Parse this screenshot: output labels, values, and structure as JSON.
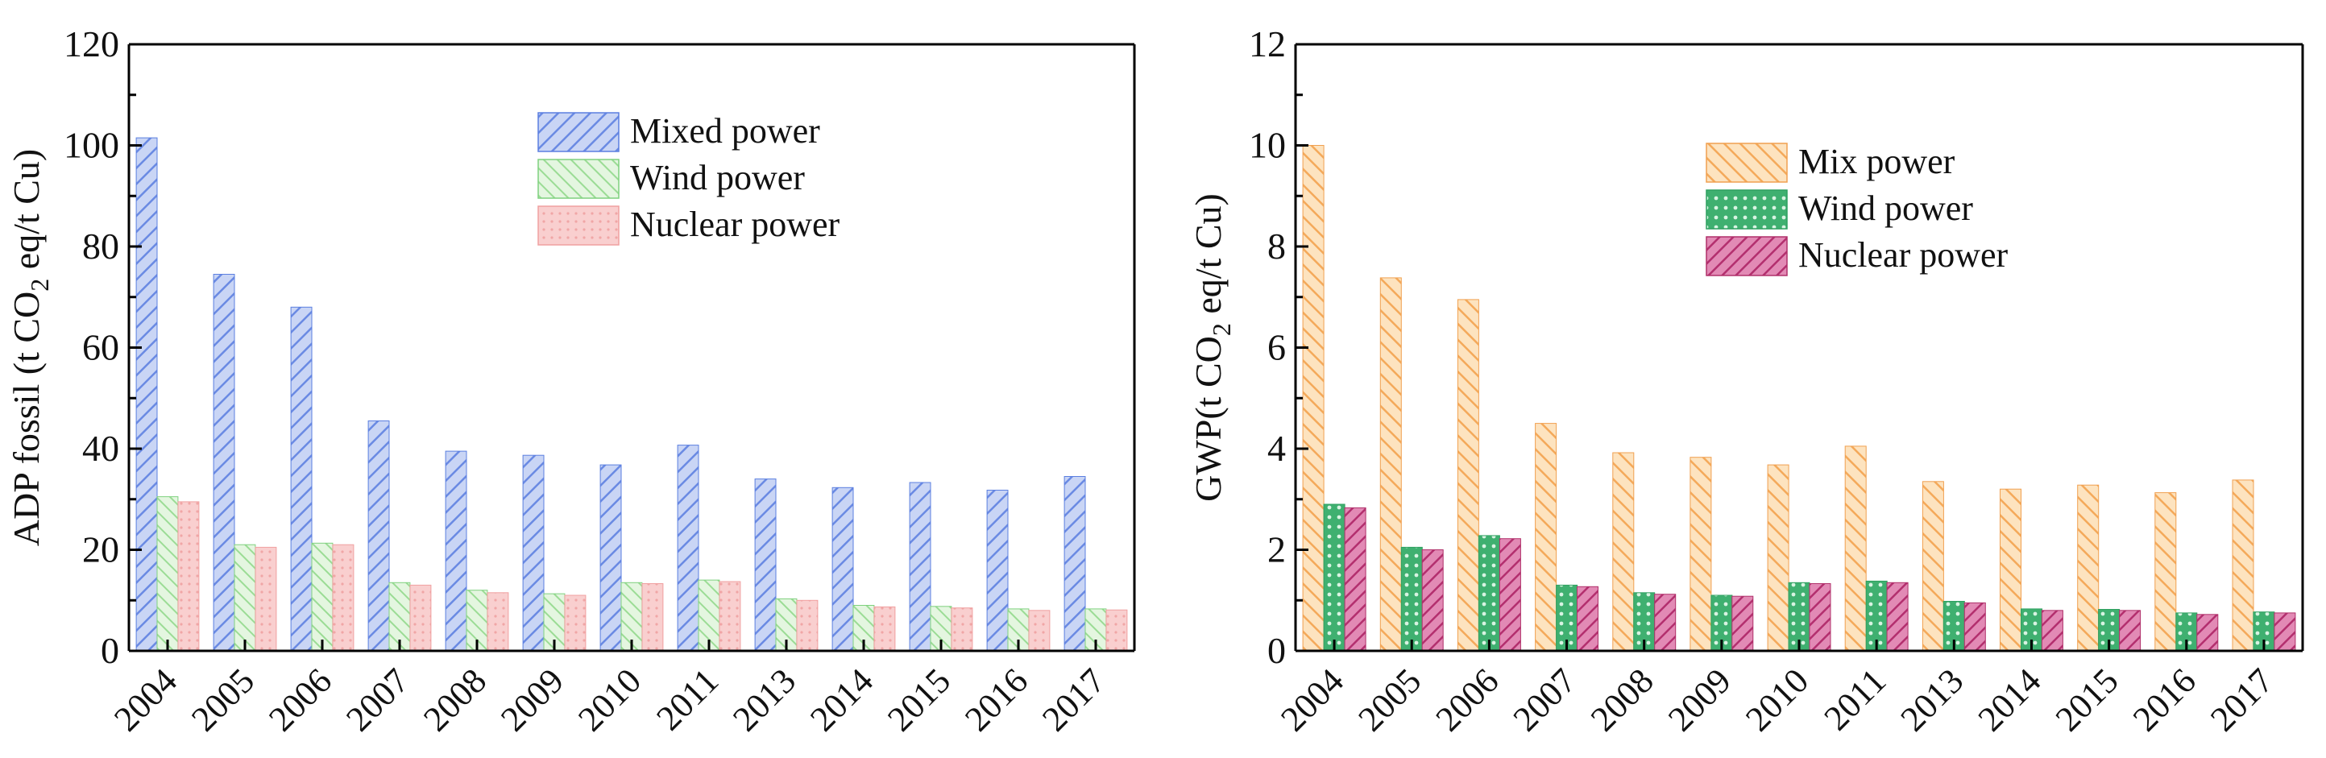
{
  "chart_data": [
    {
      "type": "bar",
      "ylabel": "ADP fossil (t CO2 eq/t Cu)",
      "ylabel_parts": [
        "ADP fossil (t CO",
        "2",
        " eq/t Cu)"
      ],
      "xlabel": "",
      "ylim": [
        0,
        120
      ],
      "yticks": [
        "0",
        "20",
        "40",
        "60",
        "80",
        "100",
        "120"
      ],
      "categories": [
        "2004",
        "2005",
        "2006",
        "2007",
        "2008",
        "2009",
        "2010",
        "2011",
        "2013",
        "2014",
        "2015",
        "2016",
        "2017"
      ],
      "legend_position": "top-right",
      "series": [
        {
          "name": "Mixed power",
          "color": "#5b7fe0",
          "fill": "#b9c8f2",
          "values": [
            101.5,
            74.5,
            68,
            45.5,
            39.5,
            38.7,
            36.8,
            40.7,
            34,
            32.3,
            33.3,
            31.8,
            34.5
          ]
        },
        {
          "name": "Wind power",
          "color": "#7fd17f",
          "fill": "#dcf3d8",
          "values": [
            30.5,
            21,
            21.3,
            13.5,
            12,
            11.3,
            13.5,
            14,
            10.3,
            9,
            8.8,
            8.3,
            8.3
          ]
        },
        {
          "name": "Nuclear power",
          "color": "#f0a0a0",
          "fill": "#f8cccc",
          "values": [
            29.5,
            20.5,
            21,
            13,
            11.5,
            11,
            13.3,
            13.7,
            10,
            8.7,
            8.5,
            8,
            8.1
          ]
        }
      ]
    },
    {
      "type": "bar",
      "ylabel": "GWP(t CO2 eq/t Cu)",
      "ylabel_parts": [
        "GWP(t CO",
        "2",
        " eq/t Cu)"
      ],
      "xlabel": "",
      "ylim": [
        0,
        12
      ],
      "yticks": [
        "0",
        "2",
        "4",
        "6",
        "8",
        "10",
        "12"
      ],
      "categories": [
        "2004",
        "2005",
        "2006",
        "2007",
        "2008",
        "2009",
        "2010",
        "2011",
        "2013",
        "2014",
        "2015",
        "2016",
        "2017"
      ],
      "legend_position": "top-right",
      "series": [
        {
          "name": "Mix power",
          "color": "#f0a050",
          "fill": "#fcd9a8",
          "values": [
            10,
            7.38,
            6.95,
            4.5,
            3.92,
            3.83,
            3.68,
            4.05,
            3.35,
            3.2,
            3.28,
            3.13,
            3.38
          ]
        },
        {
          "name": "Wind power",
          "color": "#2fa060",
          "fill": "#7fd3a0",
          "values": [
            2.9,
            2.05,
            2.28,
            1.3,
            1.15,
            1.1,
            1.35,
            1.38,
            0.98,
            0.83,
            0.82,
            0.75,
            0.77
          ]
        },
        {
          "name": "Nuclear power",
          "color": "#b0306a",
          "fill": "#e080ae",
          "values": [
            2.83,
            2.0,
            2.22,
            1.27,
            1.12,
            1.08,
            1.33,
            1.35,
            0.95,
            0.8,
            0.8,
            0.72,
            0.75
          ]
        }
      ]
    }
  ]
}
